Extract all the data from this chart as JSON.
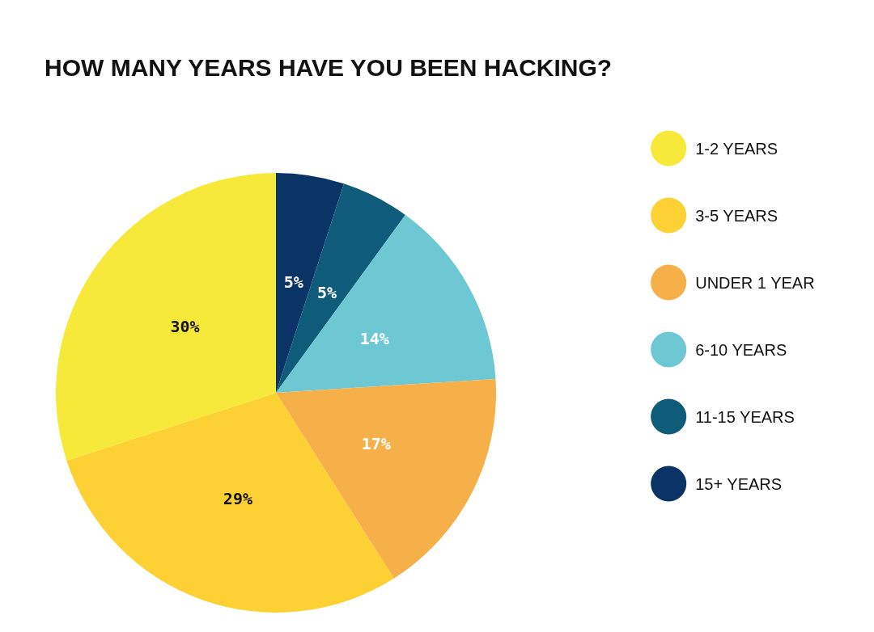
{
  "chart_data": {
    "type": "pie",
    "title": "HOW MANY YEARS HAVE YOU BEEN HACKING?",
    "categories": [
      "15+ YEARS",
      "11-15 YEARS",
      "6-10 YEARS",
      "UNDER 1 YEAR",
      "3-5 YEARS",
      "1-2 YEARS"
    ],
    "values": [
      5,
      5,
      14,
      17,
      29,
      30
    ],
    "colors": [
      "#0b3466",
      "#0f5c7a",
      "#6ec8d4",
      "#f5b04a",
      "#fdd133",
      "#f7e93a"
    ],
    "value_labels": [
      "5%",
      "5%",
      "14%",
      "17%",
      "29%",
      "30%"
    ],
    "legend": "right"
  }
}
